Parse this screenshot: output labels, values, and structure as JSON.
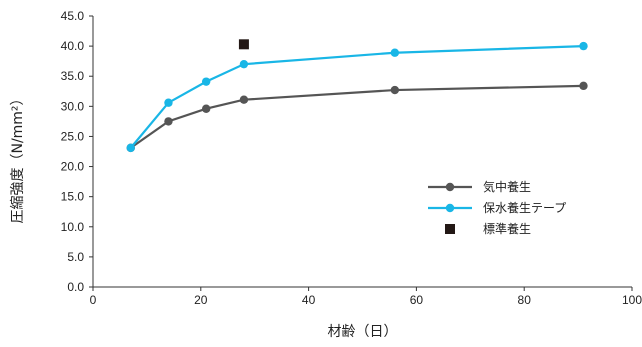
{
  "chart_data": {
    "type": "line",
    "title": "",
    "xlabel": "材齢（日）",
    "ylabel": "圧縮強度（N/mm²）",
    "xlim": [
      0,
      100
    ],
    "ylim": [
      0,
      45
    ],
    "x_ticks": [
      "0",
      "20",
      "40",
      "60",
      "80",
      "100"
    ],
    "y_ticks": [
      "0.0",
      "5.0",
      "10.0",
      "15.0",
      "20.0",
      "25.0",
      "30.0",
      "35.0",
      "40.0",
      "45.0"
    ],
    "grid": false,
    "legend_position": "right-middle",
    "series": [
      {
        "name": "気中養生",
        "color": "#555555",
        "marker": "circle",
        "x": [
          7,
          14,
          21,
          28,
          56,
          91
        ],
        "y": [
          23.1,
          27.5,
          29.6,
          31.1,
          32.7,
          33.4
        ]
      },
      {
        "name": "保水養生テープ",
        "color": "#19b6e6",
        "marker": "circle",
        "x": [
          7,
          14,
          21,
          28,
          56,
          91
        ],
        "y": [
          23.1,
          30.6,
          34.1,
          37.0,
          38.9,
          40.0
        ]
      },
      {
        "name": "標準養生",
        "color": "#231815",
        "marker": "square",
        "x": [
          28
        ],
        "y": [
          40.3
        ]
      }
    ]
  }
}
